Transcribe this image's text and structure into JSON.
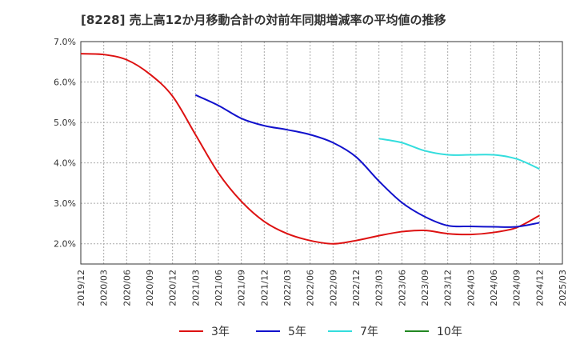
{
  "chart_data": {
    "type": "line",
    "title": "[8228]  売上高12か月移動合計の対前年同期増減率の平均値の推移",
    "xlabel": "",
    "ylabel": "",
    "ylim": [
      1.5,
      7.0
    ],
    "yticks": [
      2.0,
      3.0,
      4.0,
      5.0,
      6.0,
      7.0
    ],
    "ytick_labels": [
      "2.0%",
      "3.0%",
      "4.0%",
      "5.0%",
      "6.0%",
      "7.0%"
    ],
    "x_categories": [
      "2019/12",
      "2020/03",
      "2020/06",
      "2020/09",
      "2020/12",
      "2021/03",
      "2021/06",
      "2021/09",
      "2021/12",
      "2022/03",
      "2022/06",
      "2022/09",
      "2022/12",
      "2023/03",
      "2023/06",
      "2023/09",
      "2023/12",
      "2024/03",
      "2024/06",
      "2024/09",
      "2024/12",
      "2025/03"
    ],
    "grid": true,
    "legend_position": "bottom",
    "series": [
      {
        "name": "3年",
        "color": "#dd1111",
        "x": [
          "2019/12",
          "2020/03",
          "2020/06",
          "2020/09",
          "2020/12",
          "2021/03",
          "2021/06",
          "2021/09",
          "2021/12",
          "2022/03",
          "2022/06",
          "2022/09",
          "2022/12",
          "2023/03",
          "2023/06",
          "2023/09",
          "2023/12",
          "2024/03",
          "2024/06",
          "2024/09",
          "2024/12"
        ],
        "values": [
          6.7,
          6.68,
          6.55,
          6.2,
          5.65,
          4.7,
          3.75,
          3.05,
          2.55,
          2.25,
          2.08,
          2.0,
          2.08,
          2.2,
          2.3,
          2.33,
          2.25,
          2.23,
          2.28,
          2.4,
          2.7
        ]
      },
      {
        "name": "5年",
        "color": "#1111cc",
        "x": [
          "2021/03",
          "2021/06",
          "2021/09",
          "2021/12",
          "2022/03",
          "2022/06",
          "2022/09",
          "2022/12",
          "2023/03",
          "2023/06",
          "2023/09",
          "2023/12",
          "2024/03",
          "2024/06",
          "2024/09",
          "2024/12"
        ],
        "values": [
          5.68,
          5.42,
          5.1,
          4.92,
          4.82,
          4.7,
          4.5,
          4.15,
          3.55,
          3.02,
          2.67,
          2.45,
          2.43,
          2.42,
          2.42,
          2.52
        ]
      },
      {
        "name": "7年",
        "color": "#33dddd",
        "x": [
          "2023/03",
          "2023/06",
          "2023/09",
          "2023/12",
          "2024/03",
          "2024/06",
          "2024/09",
          "2024/12"
        ],
        "values": [
          4.6,
          4.5,
          4.3,
          4.2,
          4.2,
          4.2,
          4.1,
          3.85
        ]
      },
      {
        "name": "10年",
        "color": "#228822",
        "x": [],
        "values": []
      }
    ]
  }
}
